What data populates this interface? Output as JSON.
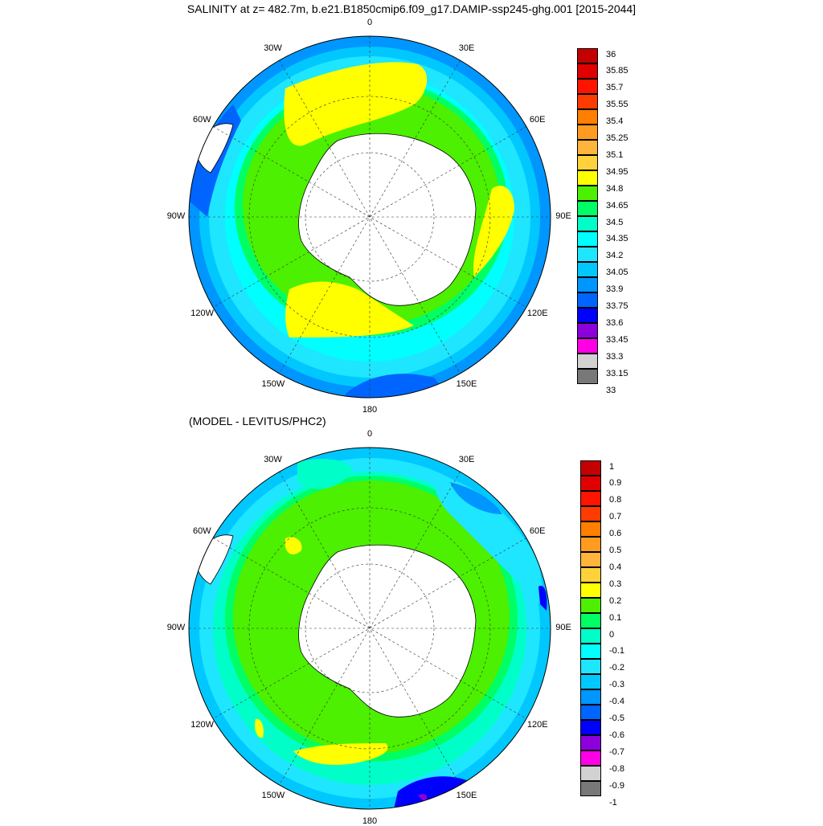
{
  "titles": {
    "main": "SALINITY at z= 482.7m, b.e21.B1850cmip6.f09_g17.DAMIP-ssp245-ghg.001 [2015-2044]",
    "diff": "(MODEL - LEVITUS/PHC2)"
  },
  "longitude_labels": [
    "0",
    "30E",
    "60E",
    "90E",
    "120E",
    "150E",
    "180",
    "150W",
    "120W",
    "90W",
    "60W",
    "30W"
  ],
  "projection": "south-polar-stereographic",
  "maps": [
    {
      "name": "salinity",
      "colorbar": {
        "labels": [
          "36",
          "35.85",
          "35.7",
          "35.55",
          "35.4",
          "35.25",
          "35.1",
          "34.95",
          "34.8",
          "34.65",
          "34.5",
          "34.35",
          "34.2",
          "34.05",
          "33.9",
          "33.75",
          "33.6",
          "33.45",
          "33.3",
          "33.15",
          "33"
        ],
        "colors": [
          "#c40000",
          "#e00000",
          "#ff1400",
          "#ff3c00",
          "#ff7f00",
          "#ff9c20",
          "#ffb43c",
          "#ffd23c",
          "#ffff00",
          "#4cf000",
          "#00ff64",
          "#00ffc8",
          "#00ffff",
          "#1ee6ff",
          "#00c8ff",
          "#0096ff",
          "#0064ff",
          "#0000ff",
          "#8c00dc",
          "#ff00e6",
          "#d2d2d2",
          "#787878"
        ]
      },
      "regions": [
        {
          "value": "34.8-34.95",
          "color": "#ffff00",
          "description": "Weddell gyre core"
        },
        {
          "value": "34.8-34.95",
          "color": "#ffff00",
          "description": "Ross gyre core"
        },
        {
          "value": "34.8-34.95",
          "color": "#ffff00",
          "description": "Indian sector band"
        }
      ]
    },
    {
      "name": "difference",
      "colorbar": {
        "labels": [
          "1",
          "0.9",
          "0.8",
          "0.7",
          "0.6",
          "0.5",
          "0.4",
          "0.3",
          "0.2",
          "0.1",
          "0",
          "-0.1",
          "-0.2",
          "-0.3",
          "-0.4",
          "-0.5",
          "-0.6",
          "-0.7",
          "-0.8",
          "-0.9",
          "-1"
        ],
        "colors": [
          "#c40000",
          "#e00000",
          "#ff1400",
          "#ff3c00",
          "#ff7f00",
          "#ff9c20",
          "#ffb43c",
          "#ffd23c",
          "#ffff00",
          "#4cf000",
          "#00ff64",
          "#00ffc8",
          "#00ffff",
          "#1ee6ff",
          "#00c8ff",
          "#0096ff",
          "#0064ff",
          "#0000ff",
          "#8c00dc",
          "#ff00e6",
          "#d2d2d2",
          "#787878"
        ]
      }
    }
  ],
  "colors": {
    "land": "#ffffff",
    "outline": "#000000"
  }
}
